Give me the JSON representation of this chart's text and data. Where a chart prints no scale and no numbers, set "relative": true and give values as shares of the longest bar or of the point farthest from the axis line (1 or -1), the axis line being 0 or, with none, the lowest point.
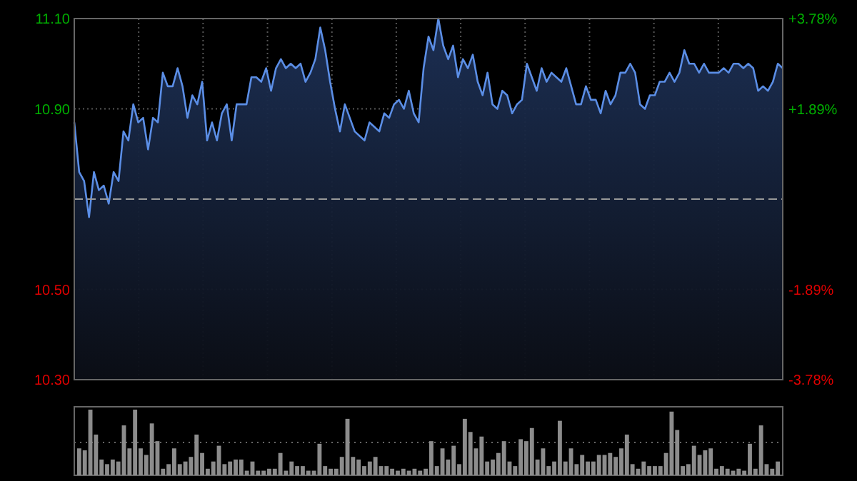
{
  "chart_data": [
    {
      "type": "area",
      "color": "#5b8ee6",
      "categories": [
        null,
        null,
        null,
        null,
        null,
        null,
        null,
        null,
        null,
        null,
        null,
        null,
        null,
        null,
        null,
        null,
        null,
        null,
        null,
        null,
        null,
        null,
        null,
        null,
        null,
        null,
        null,
        null,
        null,
        null,
        null,
        null,
        null,
        null,
        null,
        null,
        null,
        null,
        null,
        null,
        null,
        null,
        null,
        null,
        null,
        null,
        null,
        null,
        null,
        null,
        null,
        null,
        null,
        null,
        null,
        null,
        null,
        null,
        null,
        null,
        null,
        null,
        null,
        null,
        null,
        null,
        null,
        null,
        null,
        null,
        null,
        null,
        null,
        null,
        null,
        null,
        null,
        null,
        null,
        null,
        null,
        null,
        null,
        null,
        null,
        null,
        null,
        null,
        null,
        null,
        null,
        null,
        null,
        null,
        null,
        null,
        null,
        null,
        null,
        null,
        null,
        null,
        null,
        null,
        null,
        null,
        null,
        null,
        null,
        null,
        null,
        null,
        null,
        null,
        null,
        null,
        null,
        null,
        null,
        null,
        null,
        null,
        null,
        null,
        null,
        null,
        null,
        null,
        null,
        null,
        null,
        null,
        null,
        null,
        null,
        null,
        null,
        null,
        null,
        null,
        null,
        null,
        null,
        null,
        null
      ],
      "values": [
        10.87,
        10.76,
        10.74,
        10.66,
        10.76,
        10.72,
        10.73,
        10.69,
        10.76,
        10.74,
        10.85,
        10.83,
        10.91,
        10.87,
        10.88,
        10.81,
        10.88,
        10.87,
        10.98,
        10.95,
        10.95,
        10.99,
        10.95,
        10.88,
        10.93,
        10.91,
        10.96,
        10.83,
        10.87,
        10.83,
        10.89,
        10.91,
        10.83,
        10.91,
        10.91,
        10.91,
        10.97,
        10.97,
        10.96,
        10.99,
        10.94,
        10.99,
        11.01,
        10.99,
        11.0,
        10.99,
        11.0,
        10.96,
        10.98,
        11.01,
        11.08,
        11.03,
        10.96,
        10.9,
        10.85,
        10.91,
        10.88,
        10.85,
        10.84,
        10.83,
        10.87,
        10.86,
        10.85,
        10.89,
        10.88,
        10.91,
        10.92,
        10.9,
        10.94,
        10.89,
        10.87,
        10.99,
        11.06,
        11.03,
        11.1,
        11.04,
        11.01,
        11.04,
        10.97,
        11.01,
        10.99,
        11.02,
        10.96,
        10.93,
        10.98,
        10.91,
        10.9,
        10.94,
        10.93,
        10.89,
        10.91,
        10.92,
        11.0,
        10.97,
        10.94,
        10.99,
        10.96,
        10.98,
        10.97,
        10.96,
        10.99,
        10.95,
        10.91,
        10.91,
        10.95,
        10.92,
        10.92,
        10.89,
        10.94,
        10.91,
        10.93,
        10.98,
        10.98,
        11.0,
        10.98,
        10.91,
        10.9,
        10.93,
        10.93,
        10.96,
        10.96,
        10.98,
        10.96,
        10.98,
        11.03,
        11.0,
        11.0,
        10.98,
        11.0,
        10.98,
        10.98,
        10.98,
        10.99,
        10.98,
        11.0,
        11.0,
        10.99,
        11.0,
        10.99,
        10.94,
        10.95,
        10.94,
        10.96,
        11.0,
        10.99
      ],
      "ylim": [
        10.3,
        11.1
      ],
      "yticks": [
        {
          "value": 10.3,
          "label": "10.30"
        },
        {
          "value": 10.5,
          "label": "10.50"
        },
        {
          "value": 10.9,
          "label": "10.90"
        },
        {
          "value": 11.1,
          "label": "11.10"
        }
      ],
      "y2lim": [
        -3.78,
        3.78
      ],
      "y2ticks": [
        {
          "value": -3.78,
          "label": "-3.78%"
        },
        {
          "value": -1.89,
          "label": "-1.89%"
        },
        {
          "value": 1.89,
          "label": "+1.89%"
        },
        {
          "value": 3.78,
          "label": "+3.78%"
        }
      ],
      "ref_lines": [
        {
          "axis": "y",
          "value": 10.7,
          "line_style": "dashed"
        }
      ],
      "grid": true,
      "tick_labels": "y"
    },
    {
      "type": "bar",
      "relative": true,
      "color": "#8c8c8c",
      "ref_lines": [
        {
          "axis": "y",
          "value": 0.5,
          "line_style": "dotted"
        }
      ],
      "categories": [
        null,
        null,
        null,
        null,
        null,
        null,
        null,
        null,
        null,
        null,
        null,
        null,
        null,
        null,
        null,
        null,
        null,
        null,
        null,
        null,
        null,
        null,
        null,
        null,
        null,
        null,
        null,
        null,
        null,
        null,
        null,
        null,
        null,
        null,
        null,
        null,
        null,
        null,
        null,
        null,
        null,
        null,
        null,
        null,
        null,
        null,
        null,
        null,
        null,
        null,
        null,
        null,
        null,
        null,
        null,
        null,
        null,
        null,
        null,
        null,
        null,
        null,
        null,
        null,
        null,
        null,
        null,
        null,
        null,
        null,
        null,
        null,
        null,
        null,
        null,
        null,
        null,
        null,
        null,
        null,
        null,
        null,
        null,
        null,
        null,
        null,
        null,
        null,
        null,
        null,
        null,
        null,
        null,
        null,
        null,
        null,
        null,
        null,
        null,
        null,
        null,
        null,
        null,
        null,
        null,
        null,
        null,
        null,
        null,
        null,
        null,
        null,
        null,
        null,
        null,
        null,
        null,
        null,
        null,
        null,
        null,
        null,
        null,
        null,
        null,
        null
      ],
      "values": [
        0.41,
        0.38,
        1,
        0.62,
        0.24,
        0.17,
        0.24,
        0.21,
        0.76,
        0.41,
        1,
        0.41,
        0.31,
        0.79,
        0.52,
        0.1,
        0.17,
        0.41,
        0.17,
        0.21,
        0.28,
        0.62,
        0.34,
        0.1,
        0.21,
        0.45,
        0.17,
        0.21,
        0.24,
        0.24,
        0.07,
        0.21,
        0.07,
        0.07,
        0.1,
        0.1,
        0.34,
        0.07,
        0.21,
        0.14,
        0.14,
        0.07,
        0.07,
        0.48,
        0.14,
        0.1,
        0.1,
        0.28,
        0.86,
        0.28,
        0.24,
        0.14,
        0.21,
        0.28,
        0.14,
        0.14,
        0.1,
        0.07,
        0.1,
        0.07,
        0.1,
        0.07,
        0.1,
        0.52,
        0.14,
        0.41,
        0.24,
        0.45,
        0.17,
        0.86,
        0.66,
        0.41,
        0.59,
        0.21,
        0.24,
        0.34,
        0.52,
        0.21,
        0.14,
        0.55,
        0.52,
        0.72,
        0.24,
        0.41,
        0.14,
        0.21,
        0.83,
        0.21,
        0.41,
        0.17,
        0.31,
        0.21,
        0.21,
        0.31,
        0.31,
        0.34,
        0.28,
        0.41,
        0.62,
        0.17,
        0.1,
        0.21,
        0.14,
        0.14,
        0.14,
        0.34,
        0.97,
        0.69,
        0.14,
        0.17,
        0.45,
        0.31,
        0.38,
        0.41,
        0.1,
        0.14,
        0.1,
        0.07,
        0.1,
        0.07,
        0.48,
        0.1,
        0.76,
        0.17,
        0.1,
        0.21
      ]
    }
  ]
}
